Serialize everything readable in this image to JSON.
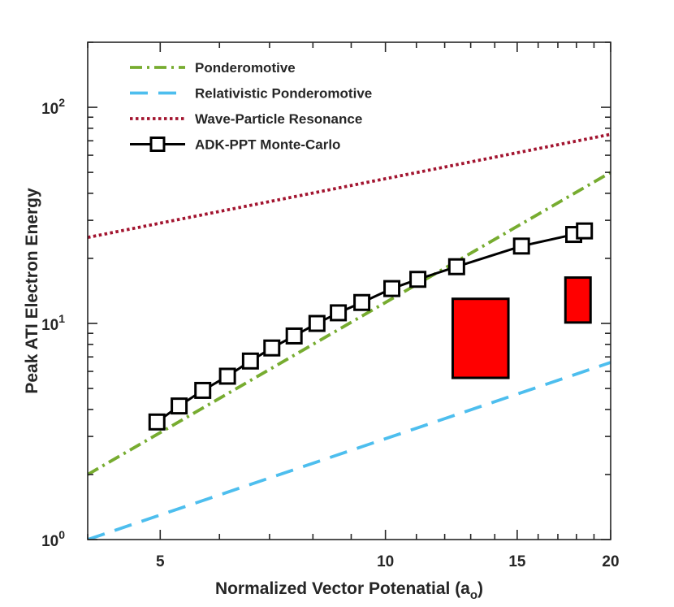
{
  "chart_data": {
    "type": "line",
    "xscale": "log",
    "yscale": "log",
    "xlim": [
      4,
      20
    ],
    "ylim": [
      1,
      200
    ],
    "xlabel": "Normalized Vector Potenatial (a",
    "xlabel_subscript": "o",
    "xlabel_suffix": ")",
    "ylabel": "Peak ATI Electron Energy",
    "x_ticks": [
      {
        "value": 5,
        "label": "5"
      },
      {
        "value": 10,
        "label": "10"
      },
      {
        "value": 15,
        "label": "15"
      },
      {
        "value": 20,
        "label": "20"
      }
    ],
    "y_ticks": [
      {
        "value": 1,
        "base": "10",
        "exp": "0"
      },
      {
        "value": 10,
        "base": "10",
        "exp": "1"
      },
      {
        "value": 100,
        "base": "10",
        "exp": "2"
      }
    ],
    "legend_position": "top-left",
    "series": [
      {
        "name": "Ponderomotive",
        "style": "dashdot",
        "color": "#77AC30",
        "marker": "none",
        "x": [
          4,
          20
        ],
        "y": [
          2.0,
          50.0
        ]
      },
      {
        "name": "Relativistic Ponderomotive",
        "style": "dashed",
        "color": "#4DBEEE",
        "marker": "none",
        "x": [
          4,
          20
        ],
        "y": [
          1.0,
          6.6
        ]
      },
      {
        "name": "Wave-Particle Resonance",
        "style": "dotted",
        "color": "#A2142F",
        "marker": "none",
        "x": [
          4,
          20
        ],
        "y": [
          25.0,
          75.0
        ]
      },
      {
        "name": "ADK-PPT Monte-Carlo",
        "style": "solid",
        "color": "#000000",
        "marker": "square",
        "x": [
          4.95,
          5.3,
          5.7,
          6.15,
          6.6,
          7.05,
          7.55,
          8.1,
          8.65,
          9.3,
          10.2,
          11.05,
          12.45,
          15.2,
          17.85,
          18.45
        ],
        "y": [
          3.5,
          4.15,
          4.9,
          5.7,
          6.7,
          7.7,
          8.75,
          10.0,
          11.2,
          12.5,
          14.5,
          16.0,
          18.3,
          22.8,
          25.8,
          26.8
        ]
      }
    ],
    "rectangles": [
      {
        "name": "measured-range-1",
        "color": "#FF0000",
        "x_range": [
          12.3,
          14.6
        ],
        "y_range": [
          5.6,
          13.0
        ]
      },
      {
        "name": "measured-range-2",
        "color": "#FF0000",
        "x_range": [
          17.4,
          18.8
        ],
        "y_range": [
          10.1,
          16.3
        ]
      }
    ]
  }
}
